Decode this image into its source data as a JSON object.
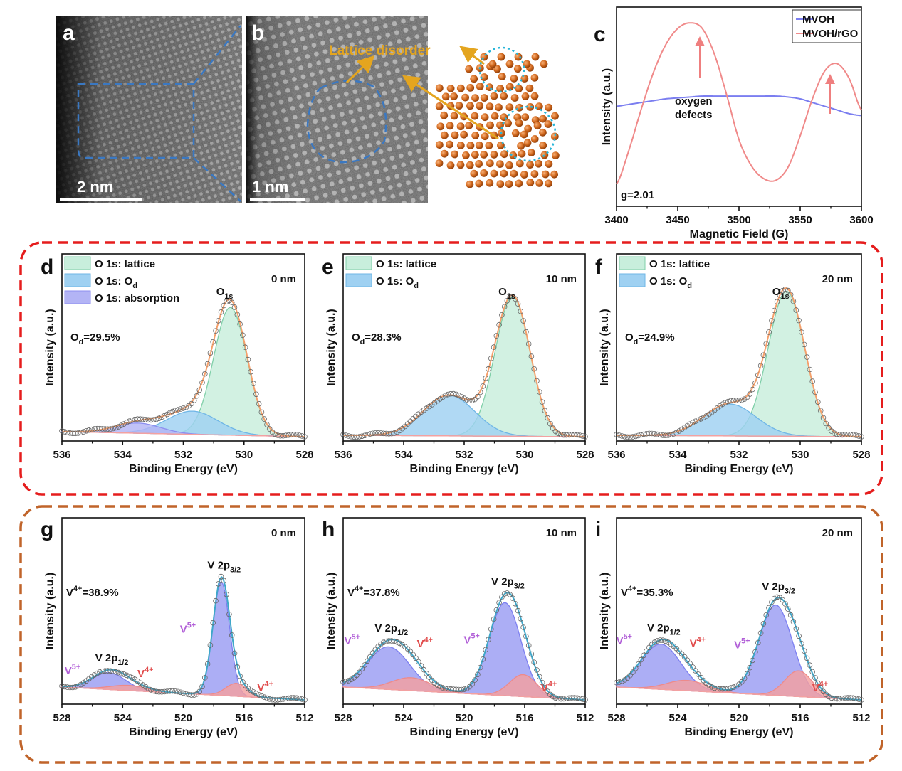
{
  "figure": {
    "panel_a": {
      "letter": "a",
      "scale_bar": "2 nm"
    },
    "panel_b": {
      "letter": "b",
      "scale_bar": "1 nm",
      "annotation": "Lattice disorder"
    },
    "panel_c": {
      "letter": "c",
      "annotation_line1": "oxygen",
      "annotation_line2": "defects",
      "g_label": "g=2.01"
    },
    "colors": {
      "mvoh": "#7b7ef0",
      "mvoh_rgo": "#f08a8a",
      "dashed_blue": "#3a78c2",
      "arrow_gold": "#e4a51f",
      "atom": "#d2691e",
      "circle_cyan": "#29b6d9",
      "box_red": "#e51d1d",
      "box_brown": "#c0642a",
      "lattice_fill": "#c8eedc",
      "od_fill": "#9fd1f2",
      "abs_fill": "#b3b4f5",
      "envelope": "#f5a06b",
      "v5_fill": "#9a9cf3",
      "v4_fill": "#f4a0a0",
      "v5_label": "#b260d8",
      "v4_label": "#e14c4c",
      "v_envelope": "#3fa7c9"
    }
  },
  "chart_data": [
    {
      "id": "c",
      "type": "line",
      "letter": "c",
      "xlabel": "Magnetic Field (G)",
      "ylabel": "Intensity (a.u.)",
      "xlim": [
        3400,
        3600
      ],
      "xticks": [
        3400,
        3450,
        3500,
        3550,
        3600
      ],
      "xtick_labels": [
        "3400",
        "3450",
        "3500",
        "3550",
        "3600"
      ],
      "legend": {
        "position": "top-right",
        "entries": [
          "MVOH",
          "MVOH/rGO"
        ]
      },
      "x": [
        3400,
        3410,
        3420,
        3430,
        3440,
        3450,
        3460,
        3470,
        3480,
        3490,
        3500,
        3510,
        3520,
        3530,
        3540,
        3550,
        3560,
        3570,
        3580,
        3590,
        3600
      ],
      "series": [
        {
          "name": "MVOH",
          "values": [
            0.54,
            0.55,
            0.56,
            0.57,
            0.58,
            0.585,
            0.59,
            0.595,
            0.595,
            0.595,
            0.595,
            0.595,
            0.595,
            0.595,
            0.59,
            0.58,
            0.56,
            0.54,
            0.52,
            0.5,
            0.49
          ]
        },
        {
          "name": "MVOH/rGO",
          "values": [
            0.12,
            0.3,
            0.52,
            0.72,
            0.87,
            0.96,
            0.99,
            0.96,
            0.82,
            0.6,
            0.36,
            0.22,
            0.15,
            0.14,
            0.21,
            0.38,
            0.58,
            0.73,
            0.77,
            0.69,
            0.52
          ]
        }
      ]
    },
    {
      "id": "d",
      "type": "area",
      "letter": "d",
      "thickness": "0 nm",
      "peak_label": "O",
      "peak_sub": "1s",
      "od_label": "O",
      "od_sub": "d",
      "od_value": "=29.5%",
      "legend": [
        {
          "label": "O 1s: lattice"
        },
        {
          "label": "O 1s: O",
          "sub": "d"
        },
        {
          "label": "O 1s: absorption"
        }
      ],
      "xlabel": "Binding Energy (eV)",
      "ylabel": "Intensity (a.u.)",
      "xlim": [
        536,
        528
      ],
      "xticks": [
        536,
        534,
        532,
        530,
        528
      ],
      "xtick_labels": [
        "536",
        "534",
        "532",
        "530",
        "528"
      ],
      "ylim": [
        0,
        1.25
      ],
      "baseline": [
        0.035,
        0.0
      ],
      "components": [
        {
          "name": "O 1s: lattice",
          "center": 530.45,
          "height": 0.88,
          "width": 0.55,
          "color": "lattice"
        },
        {
          "name": "O 1s: Od",
          "center": 531.7,
          "height": 0.16,
          "width": 0.85,
          "color": "od"
        },
        {
          "name": "O 1s: absorption",
          "center": 533.5,
          "height": 0.07,
          "width": 0.75,
          "color": "abs"
        }
      ]
    },
    {
      "id": "e",
      "type": "area",
      "letter": "e",
      "thickness": "10 nm",
      "peak_label": "O",
      "peak_sub": "1s",
      "od_label": "O",
      "od_sub": "d",
      "od_value": "=28.3%",
      "legend": [
        {
          "label": "O 1s: lattice"
        },
        {
          "label": "O 1s: O",
          "sub": "d"
        }
      ],
      "xlabel": "Binding Energy (eV)",
      "ylabel": "Intensity (a.u.)",
      "xlim": [
        536,
        528
      ],
      "xticks": [
        536,
        534,
        532,
        530,
        528
      ],
      "xtick_labels": [
        "536",
        "534",
        "532",
        "530",
        "528"
      ],
      "ylim": [
        0,
        1.25
      ],
      "baseline": [
        0.01,
        0.0
      ],
      "components": [
        {
          "name": "O 1s: lattice",
          "center": 530.4,
          "height": 0.96,
          "width": 0.58,
          "color": "lattice"
        },
        {
          "name": "O 1s: Od",
          "center": 532.5,
          "height": 0.28,
          "width": 0.85,
          "color": "od"
        }
      ]
    },
    {
      "id": "f",
      "type": "area",
      "letter": "f",
      "thickness": "20 nm",
      "peak_label": "O",
      "peak_sub": "1s",
      "od_label": "O",
      "od_sub": "d",
      "od_value": "=24.9%",
      "legend": [
        {
          "label": "O 1s: lattice"
        },
        {
          "label": "O 1s: O",
          "sub": "d"
        }
      ],
      "xlabel": "Binding Energy (eV)",
      "ylabel": "Intensity (a.u.)",
      "xlim": [
        536,
        528
      ],
      "xticks": [
        536,
        534,
        532,
        530,
        528
      ],
      "xtick_labels": [
        "536",
        "534",
        "532",
        "530",
        "528"
      ],
      "ylim": [
        0,
        1.25
      ],
      "baseline": [
        0.01,
        0.0
      ],
      "components": [
        {
          "name": "O 1s: lattice",
          "center": 530.45,
          "height": 1.0,
          "width": 0.6,
          "color": "lattice"
        },
        {
          "name": "O 1s: Od",
          "center": 532.3,
          "height": 0.22,
          "width": 0.85,
          "color": "od"
        }
      ]
    },
    {
      "id": "g",
      "type": "area",
      "letter": "g",
      "thickness": "0 nm",
      "v4_ratio_label": "V",
      "v4_ratio_sup": "4+",
      "v4_ratio_value": "=38.9%",
      "peak_32": {
        "text": "V 2p",
        "sub": "3/2"
      },
      "peak_12": {
        "text": "V 2p",
        "sub": "1/2"
      },
      "v5_text": "V",
      "v5_sup": "5+",
      "v4_text": "V",
      "v4_sup": "4+",
      "xlabel": "Binding Energy (eV)",
      "ylabel": "Intensity (a.u.)",
      "xlim": [
        528,
        512
      ],
      "xticks": [
        528,
        524,
        520,
        516,
        512
      ],
      "xtick_labels": [
        "528",
        "524",
        "520",
        "516",
        "512"
      ],
      "ylim": [
        0,
        1.4
      ],
      "baseline": [
        0.1,
        0.0
      ],
      "components": [
        {
          "name": "V5+ 2p3/2",
          "center": 517.5,
          "height": 0.88,
          "width": 0.55,
          "color": "v5"
        },
        {
          "name": "V4+ 2p3/2",
          "center": 516.5,
          "height": 0.1,
          "width": 0.7,
          "color": "v4"
        },
        {
          "name": "V5+ 2p1/2",
          "center": 524.9,
          "height": 0.13,
          "width": 1.1,
          "color": "v5"
        },
        {
          "name": "V4+ 2p1/2",
          "center": 523.6,
          "height": 0.04,
          "width": 1.2,
          "color": "v4"
        }
      ]
    },
    {
      "id": "h",
      "type": "area",
      "letter": "h",
      "thickness": "10 nm",
      "v4_ratio_label": "V",
      "v4_ratio_sup": "4+",
      "v4_ratio_value": "=37.8%",
      "peak_32": {
        "text": "V 2p",
        "sub": "3/2"
      },
      "peak_12": {
        "text": "V 2p",
        "sub": "1/2"
      },
      "v5_text": "V",
      "v5_sup": "5+",
      "v4_text": "V",
      "v4_sup": "4+",
      "xlabel": "Binding Energy (eV)",
      "ylabel": "Intensity (a.u.)",
      "xlim": [
        528,
        512
      ],
      "xticks": [
        528,
        524,
        520,
        516,
        512
      ],
      "xtick_labels": [
        "528",
        "524",
        "520",
        "516",
        "512"
      ],
      "ylim": [
        0,
        1.4
      ],
      "baseline": [
        0.1,
        0.0
      ],
      "components": [
        {
          "name": "V5+ 2p3/2",
          "center": 517.3,
          "height": 0.72,
          "width": 1.05,
          "color": "v5"
        },
        {
          "name": "V4+ 2p3/2",
          "center": 516.1,
          "height": 0.17,
          "width": 0.9,
          "color": "v4"
        },
        {
          "name": "V5+ 2p1/2",
          "center": 525.0,
          "height": 0.33,
          "width": 1.4,
          "color": "v5"
        },
        {
          "name": "V4+ 2p1/2",
          "center": 523.5,
          "height": 0.1,
          "width": 1.3,
          "color": "v4"
        }
      ]
    },
    {
      "id": "i",
      "type": "area",
      "letter": "i",
      "thickness": "20 nm",
      "v4_ratio_label": "V",
      "v4_ratio_sup": "4+",
      "v4_ratio_value": "=35.3%",
      "peak_32": {
        "text": "V 2p",
        "sub": "3/2"
      },
      "peak_12": {
        "text": "V 2p",
        "sub": "1/2"
      },
      "v5_text": "V",
      "v5_sup": "5+",
      "v4_text": "V",
      "v4_sup": "4+",
      "xlabel": "Binding Energy (eV)",
      "ylabel": "Intensity (a.u.)",
      "xlim": [
        528,
        512
      ],
      "xticks": [
        528,
        524,
        520,
        516,
        512
      ],
      "xtick_labels": [
        "528",
        "524",
        "520",
        "516",
        "512"
      ],
      "ylim": [
        0,
        1.4
      ],
      "baseline": [
        0.1,
        0.0
      ],
      "components": [
        {
          "name": "V5+ 2p3/2",
          "center": 517.6,
          "height": 0.7,
          "width": 1.1,
          "color": "v5"
        },
        {
          "name": "V4+ 2p3/2",
          "center": 516.1,
          "height": 0.2,
          "width": 0.9,
          "color": "v4"
        },
        {
          "name": "V5+ 2p1/2",
          "center": 525.1,
          "height": 0.35,
          "width": 1.3,
          "color": "v5"
        },
        {
          "name": "V4+ 2p1/2",
          "center": 523.4,
          "height": 0.08,
          "width": 1.3,
          "color": "v4"
        }
      ]
    }
  ]
}
